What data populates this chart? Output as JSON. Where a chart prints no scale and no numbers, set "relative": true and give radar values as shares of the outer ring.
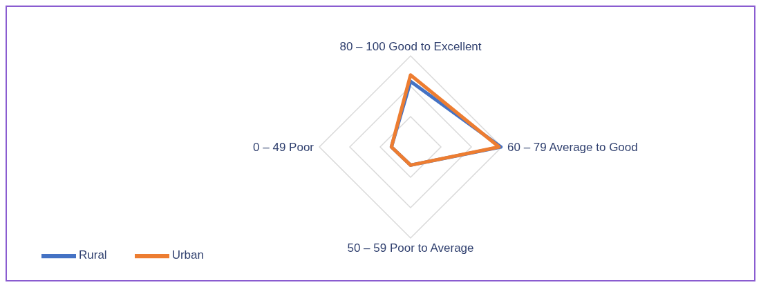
{
  "chart_data": {
    "type": "radar",
    "relative": true,
    "categories": [
      "80 – 100 Good to Excellent",
      "60 – 79 Average to Good",
      "50 – 59 Poor to Average",
      "0 – 49 Poor"
    ],
    "series": [
      {
        "name": "Rural",
        "color": "#4472c4",
        "values": [
          0.72,
          0.99,
          0.2,
          0.21
        ]
      },
      {
        "name": "Urban",
        "color": "#ed7d31",
        "values": [
          0.79,
          0.97,
          0.2,
          0.21
        ]
      }
    ],
    "grid": true,
    "legend": "bottom left",
    "marker": "none"
  }
}
